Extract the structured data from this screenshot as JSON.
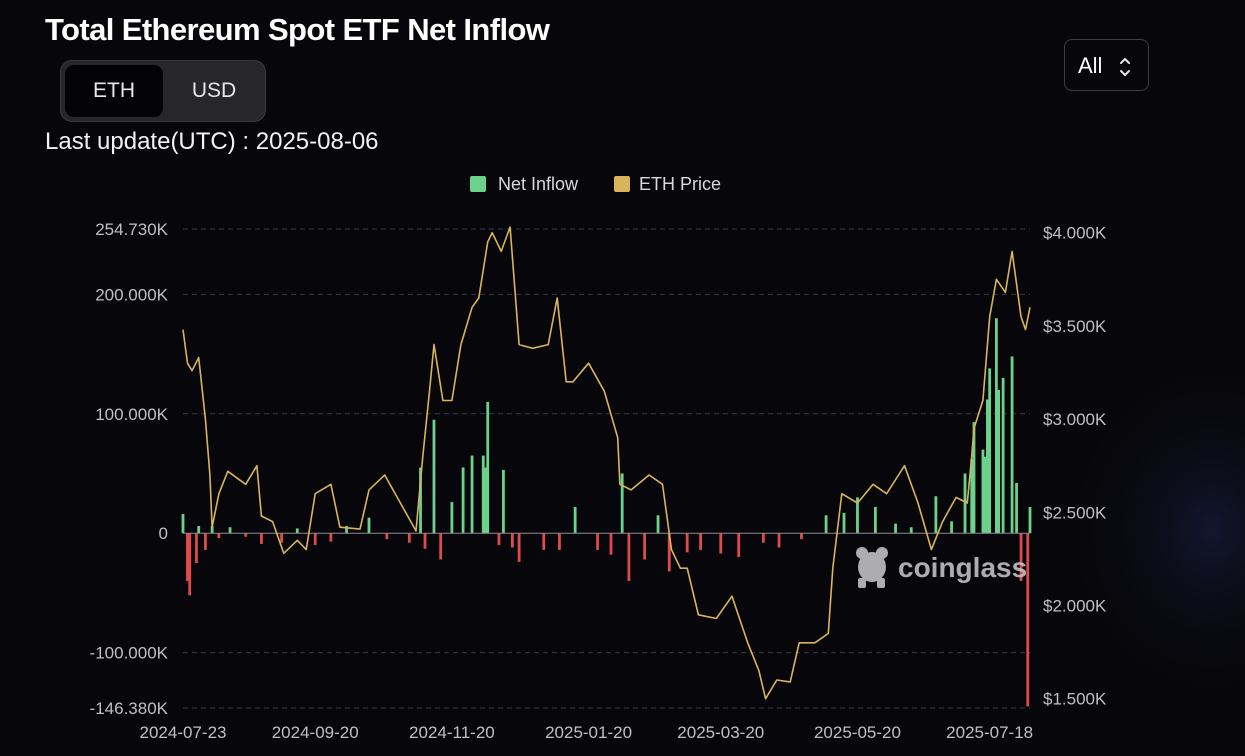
{
  "header": {
    "title": "Total Ethereum Spot ETF Net Inflow",
    "unit_options": [
      "ETH",
      "USD"
    ],
    "active_unit": "ETH",
    "last_update": "Last update(UTC) : 2025-08-06",
    "range_select": "All"
  },
  "watermark": "coinglass",
  "colors": {
    "inflow_positive": "#6bd18b",
    "inflow_negative": "#dd4b4b",
    "price_line": "#d9b45a",
    "grid": "#3a3a44",
    "background": "#07070b"
  },
  "chart_data": {
    "type": "bar+line",
    "title": "Total Ethereum Spot ETF Net Inflow",
    "legend": [
      "Net Inflow",
      "ETH Price"
    ],
    "legend_position": "top-center",
    "grid": "dashed horizontal",
    "x_axis": {
      "type": "date",
      "range": [
        "2024-07-23",
        "2025-08-05"
      ],
      "tick_labels": [
        "2024-07-23",
        "2024-09-20",
        "2024-11-20",
        "2025-01-20",
        "2025-03-20",
        "2025-05-20",
        "2025-07-18"
      ]
    },
    "y_left": {
      "name": "Net Inflow",
      "unit": "ETH",
      "min": -146380,
      "max": 254730,
      "tick_labels": [
        {
          "value": 254730,
          "label": "254.730K"
        },
        {
          "value": 200000,
          "label": "200.000K"
        },
        {
          "value": 100000,
          "label": "100.000K"
        },
        {
          "value": 0,
          "label": "0"
        },
        {
          "value": -100000,
          "label": "-100.000K"
        },
        {
          "value": -146380,
          "label": "-146.380K"
        }
      ]
    },
    "y_right": {
      "name": "ETH Price",
      "unit": "USD",
      "min": 1450,
      "max": 4020,
      "tick_labels": [
        {
          "value": 4000,
          "label": "$4.000K"
        },
        {
          "value": 3500,
          "label": "$3.500K"
        },
        {
          "value": 3000,
          "label": "$3.000K"
        },
        {
          "value": 2500,
          "label": "$2.500K"
        },
        {
          "value": 2000,
          "label": "$2.000K"
        },
        {
          "value": 1500,
          "label": "$1.500K"
        }
      ]
    },
    "series": [
      {
        "name": "Net Inflow",
        "type": "bar",
        "x": [
          "2024-07-23",
          "2024-07-25",
          "2024-07-26",
          "2024-07-29",
          "2024-07-30",
          "2024-08-02",
          "2024-08-05",
          "2024-08-08",
          "2024-08-13",
          "2024-08-20",
          "2024-08-27",
          "2024-09-05",
          "2024-09-12",
          "2024-09-20",
          "2024-09-27",
          "2024-10-04",
          "2024-10-14",
          "2024-10-22",
          "2024-11-01",
          "2024-11-06",
          "2024-11-08",
          "2024-11-12",
          "2024-11-15",
          "2024-11-20",
          "2024-11-25",
          "2024-11-29",
          "2024-12-04",
          "2024-12-05",
          "2024-12-06",
          "2024-12-11",
          "2024-12-13",
          "2024-12-17",
          "2024-12-20",
          "2024-12-31",
          "2025-01-07",
          "2025-01-14",
          "2025-01-24",
          "2025-01-30",
          "2025-02-04",
          "2025-02-07",
          "2025-02-14",
          "2025-02-20",
          "2025-02-25",
          "2025-03-05",
          "2025-03-11",
          "2025-03-20",
          "2025-03-28",
          "2025-04-08",
          "2025-04-15",
          "2025-04-25",
          "2025-05-06",
          "2025-05-14",
          "2025-05-20",
          "2025-05-28",
          "2025-06-06",
          "2025-06-13",
          "2025-06-24",
          "2025-07-01",
          "2025-07-07",
          "2025-07-10",
          "2025-07-11",
          "2025-07-15",
          "2025-07-16",
          "2025-07-17",
          "2025-07-18",
          "2025-07-21",
          "2025-07-22",
          "2025-07-24",
          "2025-07-28",
          "2025-07-30",
          "2025-08-01",
          "2025-08-04",
          "2025-08-05"
        ],
        "values": [
          16000,
          -40000,
          -52000,
          -25000,
          6000,
          -14000,
          6000,
          -4000,
          5000,
          -3000,
          -9000,
          -8000,
          4000,
          -10000,
          -7000,
          6000,
          13000,
          -5000,
          -8000,
          55000,
          -13000,
          95000,
          -22000,
          26000,
          55000,
          65000,
          65000,
          55000,
          110000,
          -10000,
          53000,
          -12000,
          -24000,
          -14000,
          -14000,
          22000,
          -14000,
          -18000,
          50000,
          -40000,
          -22000,
          15000,
          -32000,
          -16000,
          -14000,
          -17000,
          -20000,
          -8000,
          -12000,
          -5000,
          15000,
          17000,
          30000,
          22000,
          8000,
          5000,
          31000,
          10000,
          50000,
          62000,
          93000,
          70000,
          64000,
          112000,
          138000,
          180000,
          120000,
          130000,
          148000,
          42000,
          -40000,
          -145000,
          22000
        ]
      },
      {
        "name": "ETH Price",
        "type": "line",
        "x": [
          "2024-07-23",
          "2024-07-25",
          "2024-07-27",
          "2024-07-30",
          "2024-08-02",
          "2024-08-04",
          "2024-08-05",
          "2024-08-08",
          "2024-08-12",
          "2024-08-20",
          "2024-08-25",
          "2024-08-27",
          "2024-09-01",
          "2024-09-06",
          "2024-09-12",
          "2024-09-16",
          "2024-09-20",
          "2024-09-27",
          "2024-10-01",
          "2024-10-10",
          "2024-10-14",
          "2024-10-21",
          "2024-10-28",
          "2024-11-04",
          "2024-11-07",
          "2024-11-10",
          "2024-11-12",
          "2024-11-16",
          "2024-11-20",
          "2024-11-24",
          "2024-11-29",
          "2024-12-02",
          "2024-12-06",
          "2024-12-08",
          "2024-12-12",
          "2024-12-16",
          "2024-12-20",
          "2024-12-26",
          "2025-01-02",
          "2025-01-06",
          "2025-01-10",
          "2025-01-13",
          "2025-01-20",
          "2025-01-27",
          "2025-02-02",
          "2025-02-03",
          "2025-02-08",
          "2025-02-16",
          "2025-02-22",
          "2025-02-26",
          "2025-03-02",
          "2025-03-05",
          "2025-03-10",
          "2025-03-18",
          "2025-03-25",
          "2025-04-01",
          "2025-04-06",
          "2025-04-09",
          "2025-04-14",
          "2025-04-20",
          "2025-04-24",
          "2025-05-01",
          "2025-05-07",
          "2025-05-09",
          "2025-05-13",
          "2025-05-20",
          "2025-05-27",
          "2025-06-02",
          "2025-06-10",
          "2025-06-16",
          "2025-06-22",
          "2025-06-27",
          "2025-07-03",
          "2025-07-08",
          "2025-07-10",
          "2025-07-11",
          "2025-07-15",
          "2025-07-18",
          "2025-07-21",
          "2025-07-25",
          "2025-07-28",
          "2025-08-01",
          "2025-08-03",
          "2025-08-05"
        ],
        "values": [
          3480,
          3300,
          3260,
          3330,
          3000,
          2700,
          2420,
          2600,
          2720,
          2650,
          2750,
          2480,
          2450,
          2280,
          2350,
          2300,
          2600,
          2650,
          2420,
          2410,
          2620,
          2700,
          2550,
          2400,
          2800,
          3150,
          3400,
          3100,
          3100,
          3400,
          3600,
          3650,
          3950,
          4000,
          3900,
          4030,
          3400,
          3380,
          3400,
          3650,
          3200,
          3200,
          3300,
          3150,
          2900,
          2650,
          2620,
          2700,
          2650,
          2300,
          2200,
          2200,
          1950,
          1930,
          2050,
          1800,
          1650,
          1500,
          1600,
          1590,
          1800,
          1800,
          1850,
          2200,
          2600,
          2550,
          2650,
          2600,
          2750,
          2550,
          2300,
          2450,
          2580,
          2550,
          2800,
          2950,
          3100,
          3550,
          3750,
          3680,
          3900,
          3550,
          3480,
          3600
        ]
      }
    ]
  }
}
